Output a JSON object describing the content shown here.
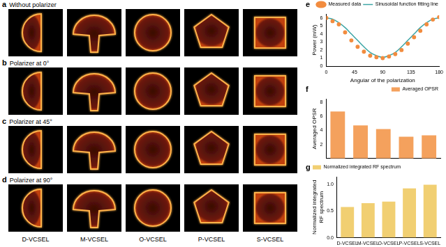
{
  "image_panels": [
    {
      "letter": "a",
      "title": "Without polarizer"
    },
    {
      "letter": "b",
      "title": "Polarizer at 0°"
    },
    {
      "letter": "c",
      "title": "Polarizer at 45°"
    },
    {
      "letter": "d",
      "title": "Polarizer at 90°"
    }
  ],
  "image_columns": [
    "D-VCSEL",
    "M-VCSEL",
    "O-VCSEL",
    "P-VCSEL",
    "S-VCSEL"
  ],
  "chart_data": [
    {
      "type": "scatter",
      "annotations": [
        "e"
      ],
      "x_label": "Angular of the polarization",
      "y_label": "Power (mW)",
      "x": [
        0,
        10,
        20,
        30,
        40,
        50,
        60,
        70,
        80,
        90,
        100,
        110,
        120,
        130,
        140,
        150,
        160,
        170,
        180
      ],
      "series": [
        {
          "name": "Measured data",
          "type": "scatter",
          "marker": "circle",
          "color": "#f28c3f",
          "values": [
            6.0,
            5.6,
            5.2,
            4.2,
            3.2,
            2.4,
            1.8,
            1.3,
            1.1,
            1.0,
            1.2,
            1.5,
            2.0,
            2.8,
            3.6,
            4.4,
            5.2,
            5.8,
            6.1
          ]
        },
        {
          "name": "Sinusoidal function fitting line",
          "type": "line",
          "line_style": "solid",
          "color": "#3ca5a5",
          "values": [
            6.0,
            5.85,
            5.4,
            4.8,
            4.0,
            3.2,
            2.4,
            1.7,
            1.3,
            1.1,
            1.3,
            1.7,
            2.4,
            3.2,
            4.0,
            4.8,
            5.4,
            5.85,
            6.0
          ]
        }
      ],
      "xlim": [
        0,
        180
      ],
      "xticks": [
        0,
        45,
        90,
        135,
        180
      ],
      "ylim": [
        0,
        6.5
      ],
      "yticks": [
        0,
        1,
        2,
        3,
        4,
        5,
        6
      ],
      "grid": false,
      "legend": "upper right"
    },
    {
      "type": "bar",
      "annotations": [
        "f"
      ],
      "y_label": "Averaged OPSR",
      "categories": [
        "D-VCSEL",
        "M-VCSEL",
        "O-VCSEL",
        "P-VCSEL",
        "S-VCSEL"
      ],
      "series": [
        {
          "name": "Averaged OPSR",
          "color": "#f4a15d",
          "values": [
            6.7,
            4.7,
            4.2,
            3.1,
            3.3
          ]
        }
      ],
      "ylim": [
        0,
        8.5
      ],
      "yticks": [
        2,
        4,
        6,
        8
      ],
      "grid": false,
      "legend": "upper right",
      "tick_labels": "y"
    },
    {
      "type": "bar",
      "annotations": [
        "g"
      ],
      "y_label": "Normalized integrated RF spectrum",
      "categories": [
        "D-VCSEL",
        "M-VCSEL",
        "O-VCSEL",
        "P-VCSEL",
        "S-VCSEL"
      ],
      "series": [
        {
          "name": "Normalized integrated RF spectrum",
          "color": "#f1cf72",
          "values": [
            0.58,
            0.65,
            0.68,
            0.93,
            1.0
          ]
        }
      ],
      "ylim": [
        0,
        1.15
      ],
      "yticks": [
        {
          "value": 0,
          "label": "0.0"
        },
        {
          "value": 0.5,
          "label": "0.5"
        },
        {
          "value": 1,
          "label": "1.0"
        }
      ],
      "grid": false,
      "legend": "upper left"
    }
  ]
}
